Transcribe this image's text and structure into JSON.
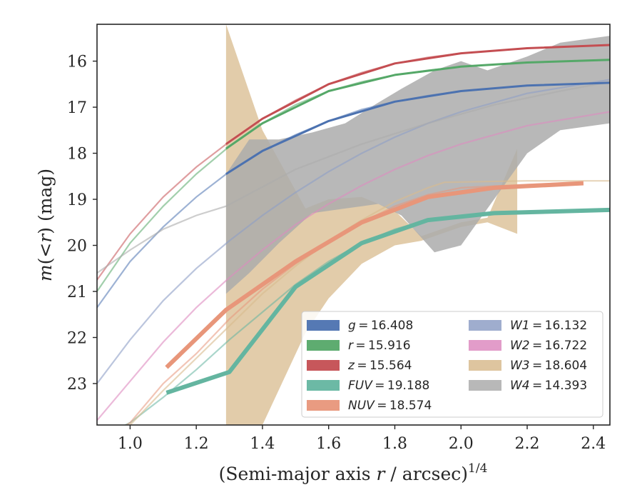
{
  "chart_data": {
    "type": "line",
    "xlabel": "(Semi-major axis r / arcsec)^{1/4}",
    "xlabel_parts": {
      "main": "(Semi-major axis ",
      "var": "r",
      "rest": " / arcsec)",
      "sup": "1/4"
    },
    "ylabel": "m(<r) (mag)",
    "ylabel_parts": {
      "m": "m",
      "open": "(",
      "lt": "<",
      "r": "r",
      "close": ")",
      "unit": " (mag)"
    },
    "xlim": [
      0.9,
      2.45
    ],
    "ylim": [
      23.9,
      15.2
    ],
    "y_inverted": true,
    "xticks": [
      1.0,
      1.2,
      1.4,
      1.6,
      1.8,
      2.0,
      2.2,
      2.4
    ],
    "xtick_labels": [
      "1.0",
      "1.2",
      "1.4",
      "1.6",
      "1.8",
      "2.0",
      "2.2",
      "2.4"
    ],
    "yticks": [
      16,
      17,
      18,
      19,
      20,
      21,
      22,
      23
    ],
    "ytick_labels": [
      "16",
      "17",
      "18",
      "19",
      "20",
      "21",
      "22",
      "23"
    ],
    "grid": false,
    "legend_position": "lower-right",
    "series": [
      {
        "name": "g",
        "value": "16.408",
        "color": "#4c72b0",
        "model": [
          [
            0.9,
            21.35
          ],
          [
            1.0,
            20.35
          ],
          [
            1.1,
            19.6
          ],
          [
            1.2,
            18.95
          ],
          [
            1.3,
            18.4
          ],
          [
            1.4,
            17.95
          ],
          [
            1.5,
            17.6
          ],
          [
            1.6,
            17.3
          ],
          [
            1.7,
            17.05
          ],
          [
            1.8,
            16.88
          ],
          [
            1.9,
            16.75
          ],
          [
            2.0,
            16.65
          ],
          [
            2.2,
            16.53
          ],
          [
            2.45,
            16.47
          ]
        ],
        "data": [
          [
            1.29,
            18.45
          ],
          [
            1.4,
            17.95
          ],
          [
            1.6,
            17.3
          ],
          [
            1.8,
            16.88
          ],
          [
            2.0,
            16.65
          ],
          [
            2.2,
            16.53
          ],
          [
            2.45,
            16.47
          ]
        ]
      },
      {
        "name": "r",
        "value": "15.916",
        "color": "#55a868",
        "model": [
          [
            0.9,
            21.0
          ],
          [
            1.0,
            19.95
          ],
          [
            1.1,
            19.15
          ],
          [
            1.2,
            18.45
          ],
          [
            1.3,
            17.85
          ],
          [
            1.4,
            17.35
          ],
          [
            1.5,
            16.95
          ],
          [
            1.6,
            16.65
          ],
          [
            1.7,
            16.45
          ],
          [
            1.8,
            16.3
          ],
          [
            1.9,
            16.2
          ],
          [
            2.0,
            16.12
          ],
          [
            2.2,
            16.03
          ],
          [
            2.45,
            15.97
          ]
        ],
        "data": [
          [
            1.29,
            17.9
          ],
          [
            1.4,
            17.35
          ],
          [
            1.6,
            16.65
          ],
          [
            1.8,
            16.3
          ],
          [
            2.0,
            16.12
          ],
          [
            2.2,
            16.03
          ],
          [
            2.45,
            15.97
          ]
        ]
      },
      {
        "name": "z",
        "value": "15.564",
        "color": "#c44e52",
        "model": [
          [
            0.9,
            20.75
          ],
          [
            1.0,
            19.75
          ],
          [
            1.1,
            18.95
          ],
          [
            1.2,
            18.3
          ],
          [
            1.3,
            17.75
          ],
          [
            1.4,
            17.25
          ],
          [
            1.5,
            16.85
          ],
          [
            1.6,
            16.5
          ],
          [
            1.7,
            16.25
          ],
          [
            1.8,
            16.05
          ],
          [
            1.9,
            15.92
          ],
          [
            2.0,
            15.83
          ],
          [
            2.2,
            15.72
          ],
          [
            2.45,
            15.65
          ]
        ],
        "data": [
          [
            1.29,
            17.8
          ],
          [
            1.4,
            17.25
          ],
          [
            1.6,
            16.5
          ],
          [
            1.8,
            16.05
          ],
          [
            2.0,
            15.83
          ],
          [
            2.2,
            15.72
          ],
          [
            2.45,
            15.65
          ]
        ]
      },
      {
        "name": "FUV",
        "value": "19.188",
        "color": "#64b5a0",
        "model": [
          [
            0.9,
            24.2
          ],
          [
            1.0,
            23.85
          ],
          [
            1.1,
            23.3
          ],
          [
            1.2,
            22.7
          ],
          [
            1.3,
            22.05
          ],
          [
            1.4,
            21.45
          ],
          [
            1.5,
            20.85
          ],
          [
            1.6,
            20.35
          ],
          [
            1.7,
            19.95
          ],
          [
            1.8,
            19.65
          ],
          [
            1.9,
            19.45
          ],
          [
            2.0,
            19.35
          ],
          [
            2.2,
            19.27
          ],
          [
            2.45,
            19.22
          ]
        ],
        "data": [
          [
            1.11,
            23.2
          ],
          [
            1.3,
            22.75
          ],
          [
            1.5,
            20.9
          ],
          [
            1.7,
            19.95
          ],
          [
            1.9,
            19.45
          ],
          [
            2.1,
            19.3
          ],
          [
            2.45,
            19.23
          ]
        ]
      },
      {
        "name": "NUV",
        "value": "18.574",
        "color": "#e8967a",
        "model": [
          [
            0.9,
            24.3
          ],
          [
            1.0,
            23.85
          ],
          [
            1.1,
            23.0
          ],
          [
            1.2,
            22.35
          ],
          [
            1.3,
            21.6
          ],
          [
            1.4,
            20.95
          ],
          [
            1.5,
            20.4
          ],
          [
            1.6,
            19.95
          ],
          [
            1.7,
            19.5
          ],
          [
            1.8,
            19.15
          ],
          [
            1.9,
            18.9
          ],
          [
            2.0,
            18.75
          ],
          [
            2.2,
            18.68
          ],
          [
            2.37,
            18.63
          ]
        ],
        "data": [
          [
            1.11,
            22.65
          ],
          [
            1.29,
            21.4
          ],
          [
            1.5,
            20.35
          ],
          [
            1.7,
            19.5
          ],
          [
            1.9,
            18.95
          ],
          [
            2.1,
            18.75
          ],
          [
            2.37,
            18.65
          ]
        ]
      },
      {
        "name": "W1",
        "value": "16.132",
        "color": "#8e9fc6",
        "model": [
          [
            0.9,
            23.0
          ],
          [
            1.0,
            22.05
          ],
          [
            1.1,
            21.2
          ],
          [
            1.2,
            20.5
          ],
          [
            1.3,
            19.9
          ],
          [
            1.4,
            19.35
          ],
          [
            1.5,
            18.85
          ],
          [
            1.6,
            18.4
          ],
          [
            1.7,
            18.0
          ],
          [
            1.8,
            17.65
          ],
          [
            1.9,
            17.35
          ],
          [
            2.0,
            17.1
          ],
          [
            2.2,
            16.7
          ],
          [
            2.45,
            16.4
          ]
        ]
      },
      {
        "name": "W2",
        "value": "16.722",
        "color": "#dd8bc0",
        "model": [
          [
            0.9,
            23.8
          ],
          [
            1.0,
            22.95
          ],
          [
            1.1,
            22.1
          ],
          [
            1.2,
            21.35
          ],
          [
            1.3,
            20.7
          ],
          [
            1.4,
            20.1
          ],
          [
            1.5,
            19.55
          ],
          [
            1.6,
            19.1
          ],
          [
            1.7,
            18.7
          ],
          [
            1.8,
            18.35
          ],
          [
            1.9,
            18.05
          ],
          [
            2.0,
            17.8
          ],
          [
            2.2,
            17.4
          ],
          [
            2.45,
            17.1
          ]
        ]
      },
      {
        "name": "W3",
        "value": "18.604",
        "color": "#d8bb8e",
        "model": [
          [
            0.9,
            24.3
          ],
          [
            1.0,
            23.9
          ],
          [
            1.1,
            23.15
          ],
          [
            1.2,
            22.45
          ],
          [
            1.3,
            21.75
          ],
          [
            1.4,
            21.05
          ],
          [
            1.5,
            20.45
          ],
          [
            1.6,
            19.9
          ],
          [
            1.7,
            19.45
          ],
          [
            1.8,
            19.05
          ],
          [
            1.9,
            18.75
          ],
          [
            1.95,
            18.63
          ],
          [
            2.2,
            18.6
          ],
          [
            2.45,
            18.6
          ]
        ],
        "band": [
          [
            1.29,
            15.2,
            23.9
          ],
          [
            1.4,
            17.5,
            23.9
          ],
          [
            1.53,
            19.2,
            21.9
          ],
          [
            1.6,
            19.0,
            21.15
          ],
          [
            1.7,
            18.95,
            20.4
          ],
          [
            1.8,
            19.25,
            20.0
          ],
          [
            1.88,
            19.8,
            19.9
          ],
          [
            2.0,
            19.5,
            19.6
          ],
          [
            2.08,
            19.4,
            19.5
          ],
          [
            2.17,
            17.9,
            19.75
          ]
        ]
      },
      {
        "name": "W4",
        "value": "14.393",
        "color": "#ababab",
        "model": [
          [
            0.9,
            20.6
          ],
          [
            1.0,
            20.1
          ],
          [
            1.1,
            19.65
          ],
          [
            1.2,
            19.35
          ],
          [
            1.29,
            19.15
          ],
          [
            1.5,
            18.35
          ],
          [
            1.7,
            17.8
          ],
          [
            1.9,
            17.35
          ],
          [
            2.1,
            16.95
          ],
          [
            2.3,
            16.65
          ],
          [
            2.45,
            16.45
          ]
        ],
        "band": [
          [
            1.29,
            18.45,
            21.05
          ],
          [
            1.36,
            17.7,
            20.6
          ],
          [
            1.45,
            17.7,
            19.95
          ],
          [
            1.55,
            17.55,
            19.3
          ],
          [
            1.65,
            17.35,
            19.2
          ],
          [
            1.75,
            16.9,
            19.1
          ],
          [
            1.82,
            16.6,
            19.35
          ],
          [
            1.92,
            16.2,
            20.15
          ],
          [
            2.0,
            16.0,
            20.0
          ],
          [
            2.08,
            16.2,
            19.2
          ],
          [
            2.2,
            15.9,
            18.0
          ],
          [
            2.3,
            15.6,
            17.5
          ],
          [
            2.45,
            15.45,
            17.35
          ]
        ]
      }
    ]
  }
}
